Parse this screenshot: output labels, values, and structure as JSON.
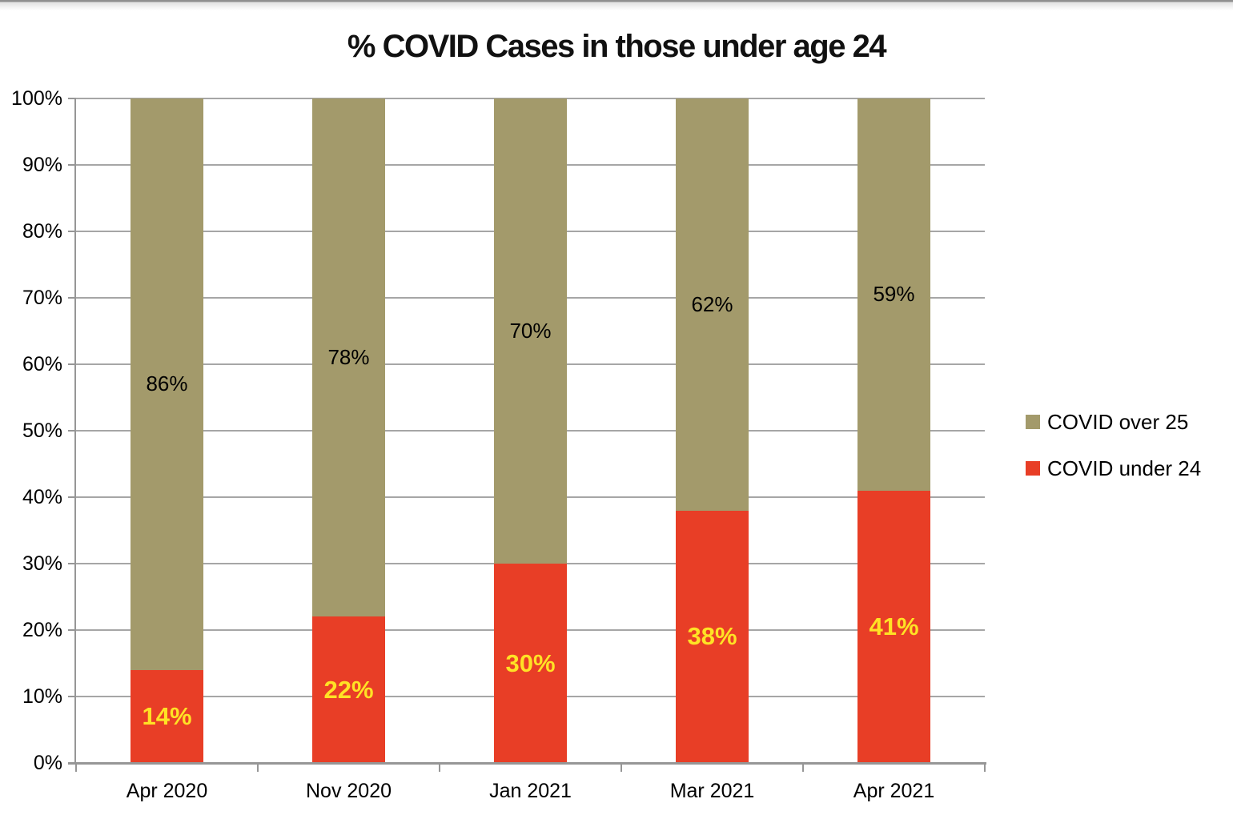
{
  "chart_data": {
    "type": "bar",
    "variant": "stacked-column",
    "title": "% COVID Cases in those under age 24",
    "categories": [
      "Apr 2020",
      "Nov 2020",
      "Jan 2021",
      "Mar 2021",
      "Apr 2021"
    ],
    "series": [
      {
        "name": "COVID over 25",
        "color": "#A39A6B",
        "values": [
          86,
          78,
          70,
          62,
          59
        ],
        "data_label_color": "#000000",
        "data_label_size": 26,
        "data_label_weight": 400
      },
      {
        "name": "COVID under 24",
        "color": "#E83E26",
        "values": [
          14,
          22,
          30,
          38,
          41
        ],
        "data_label_color": "#FFE225",
        "data_label_size": 31,
        "data_label_weight": 700
      }
    ],
    "stack_bottom_to_top": [
      "COVID under 24",
      "COVID over 25"
    ],
    "data_label_format": "{v}%",
    "y_ticks_top_to_bottom": [
      "100%",
      "90%",
      "80%",
      "70%",
      "60%",
      "50%",
      "40%",
      "30%",
      "20%",
      "10%",
      "0%"
    ],
    "ylim": [
      0,
      100
    ],
    "grid": true,
    "legend": {
      "position": "right",
      "items": [
        "COVID over 25",
        "COVID under 24"
      ]
    },
    "axis_color": "#969696",
    "gridline_color": "#A6A6A6"
  }
}
